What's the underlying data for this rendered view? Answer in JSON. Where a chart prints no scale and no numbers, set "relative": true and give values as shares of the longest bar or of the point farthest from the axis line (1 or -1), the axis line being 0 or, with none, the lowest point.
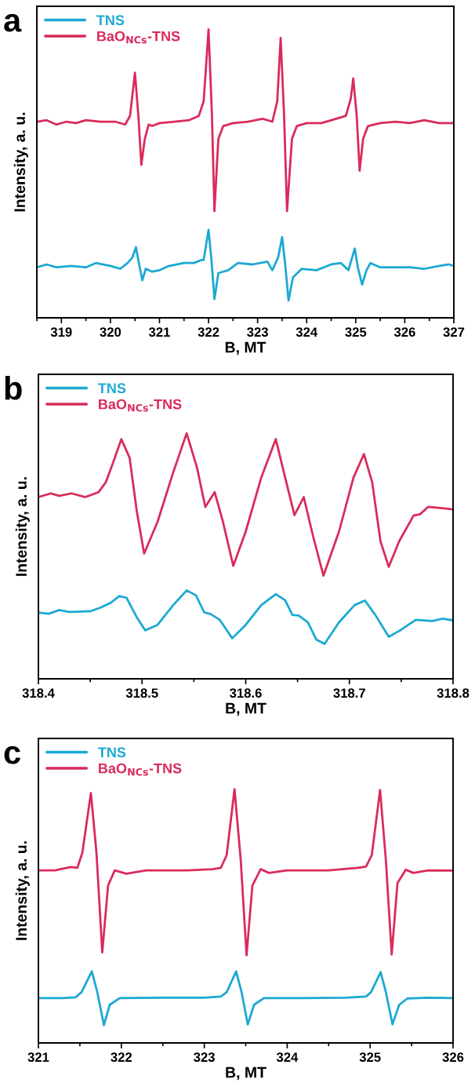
{
  "chart_data": [
    {
      "type": "line",
      "title": "a",
      "xlabel": "B, MT",
      "ylabel": "Intensity, a. u.",
      "relative": true,
      "xlim": [
        318.5,
        327
      ],
      "xticks": [
        319,
        320,
        321,
        322,
        323,
        324,
        325,
        326,
        327
      ],
      "legend": "top left",
      "grid": false,
      "series": [
        {
          "name": "TNS",
          "color": "#1ca9d3",
          "x": [
            318.5,
            318.7,
            318.9,
            319.2,
            319.5,
            319.7,
            320.0,
            320.2,
            320.35,
            320.45,
            320.52,
            320.58,
            320.65,
            320.72,
            320.85,
            321.0,
            321.2,
            321.5,
            321.7,
            321.85,
            321.9,
            322.0,
            322.06,
            322.12,
            322.2,
            322.4,
            322.6,
            322.9,
            323.2,
            323.3,
            323.42,
            323.5,
            323.56,
            323.63,
            323.72,
            323.9,
            324.2,
            324.5,
            324.7,
            324.85,
            324.98,
            325.05,
            325.13,
            325.22,
            325.3,
            325.5,
            325.8,
            326.1,
            326.4,
            326.7,
            326.9,
            327.0
          ],
          "values": [
            0.175,
            0.185,
            0.175,
            0.18,
            0.175,
            0.19,
            0.18,
            0.17,
            0.19,
            0.21,
            0.245,
            0.19,
            0.13,
            0.17,
            0.16,
            0.165,
            0.18,
            0.19,
            0.19,
            0.2,
            0.2,
            0.305,
            0.2,
            0.065,
            0.155,
            0.165,
            0.19,
            0.185,
            0.195,
            0.165,
            0.21,
            0.28,
            0.19,
            0.06,
            0.14,
            0.17,
            0.165,
            0.185,
            0.19,
            0.165,
            0.24,
            0.17,
            0.115,
            0.165,
            0.19,
            0.175,
            0.175,
            0.175,
            0.17,
            0.18,
            0.185,
            0.18
          ]
        },
        {
          "name": "BaO$_{NCs}$-TNS",
          "color": "#d92b5b",
          "x": [
            318.5,
            318.7,
            318.9,
            319.1,
            319.3,
            319.5,
            319.8,
            320.1,
            320.3,
            320.4,
            320.5,
            320.57,
            320.63,
            320.7,
            320.78,
            320.85,
            321.0,
            321.3,
            321.6,
            321.8,
            321.9,
            322.0,
            322.07,
            322.12,
            322.2,
            322.3,
            322.5,
            322.8,
            323.1,
            323.3,
            323.4,
            323.47,
            323.54,
            323.6,
            323.7,
            323.8,
            324.0,
            324.3,
            324.6,
            324.8,
            324.9,
            324.95,
            325.02,
            325.08,
            325.15,
            325.25,
            325.5,
            325.8,
            326.1,
            326.4,
            326.7,
            327.0
          ],
          "values": [
            0.68,
            0.685,
            0.67,
            0.68,
            0.675,
            0.685,
            0.68,
            0.68,
            0.67,
            0.7,
            0.85,
            0.7,
            0.53,
            0.62,
            0.67,
            0.665,
            0.675,
            0.68,
            0.685,
            0.7,
            0.75,
            1.0,
            0.7,
            0.37,
            0.62,
            0.665,
            0.675,
            0.68,
            0.69,
            0.68,
            0.75,
            0.97,
            0.7,
            0.37,
            0.62,
            0.665,
            0.675,
            0.675,
            0.69,
            0.7,
            0.76,
            0.83,
            0.7,
            0.51,
            0.62,
            0.665,
            0.675,
            0.68,
            0.675,
            0.685,
            0.675,
            0.675
          ]
        }
      ]
    },
    {
      "type": "line",
      "title": "b",
      "xlabel": "B, MT",
      "ylabel": "Intensity, a. u.",
      "relative": true,
      "xlim": [
        318.4,
        318.8
      ],
      "xticks": [
        318.4,
        318.5,
        318.6,
        318.7,
        318.8
      ],
      "legend": "top left",
      "grid": false,
      "series": [
        {
          "name": "TNS",
          "color": "#1ca9d3",
          "x": [
            318.4,
            318.41,
            318.42,
            318.43,
            318.45,
            318.46,
            318.47,
            318.478,
            318.485,
            318.495,
            318.503,
            318.515,
            318.53,
            318.543,
            318.552,
            318.56,
            318.566,
            318.575,
            318.587,
            318.6,
            318.615,
            318.629,
            318.638,
            318.645,
            318.651,
            318.66,
            318.668,
            318.676,
            318.69,
            318.705,
            318.715,
            318.725,
            318.738,
            318.75,
            318.764,
            318.78,
            318.79,
            318.8
          ],
          "values": [
            0.27,
            0.265,
            0.28,
            0.272,
            0.275,
            0.29,
            0.31,
            0.337,
            0.33,
            0.25,
            0.197,
            0.22,
            0.3,
            0.36,
            0.34,
            0.27,
            0.264,
            0.24,
            0.165,
            0.22,
            0.3,
            0.345,
            0.32,
            0.26,
            0.258,
            0.23,
            0.16,
            0.142,
            0.23,
            0.3,
            0.319,
            0.26,
            0.171,
            0.2,
            0.24,
            0.235,
            0.245,
            0.238
          ]
        },
        {
          "name": "BaO$_{NCs}$-TNS",
          "color": "#d92b5b",
          "x": [
            318.4,
            318.412,
            318.42,
            318.432,
            318.445,
            318.458,
            318.465,
            318.472,
            318.48,
            318.488,
            318.495,
            318.502,
            318.515,
            318.53,
            318.543,
            318.553,
            318.561,
            318.57,
            318.578,
            318.588,
            318.6,
            318.615,
            318.629,
            318.638,
            318.647,
            318.656,
            318.665,
            318.675,
            318.69,
            318.704,
            318.714,
            318.722,
            318.73,
            318.738,
            318.748,
            318.762,
            318.768,
            318.776,
            318.79,
            318.8
          ],
          "values": [
            0.74,
            0.755,
            0.745,
            0.755,
            0.74,
            0.76,
            0.8,
            0.88,
            0.976,
            0.9,
            0.68,
            0.51,
            0.64,
            0.84,
            1.0,
            0.86,
            0.7,
            0.76,
            0.64,
            0.46,
            0.6,
            0.82,
            0.976,
            0.82,
            0.667,
            0.74,
            0.58,
            0.42,
            0.6,
            0.82,
            0.915,
            0.8,
            0.56,
            0.456,
            0.56,
            0.665,
            0.67,
            0.7,
            0.695,
            0.69
          ]
        }
      ]
    },
    {
      "type": "line",
      "title": "c",
      "xlabel": "B, MT",
      "ylabel": "Intensity, a. u.",
      "relative": true,
      "xlim": [
        321,
        326
      ],
      "xticks": [
        321,
        322,
        323,
        324,
        325,
        326
      ],
      "legend": "top left",
      "grid": false,
      "series": [
        {
          "name": "TNS",
          "color": "#1ca9d3",
          "x": [
            321.0,
            321.3,
            321.45,
            321.52,
            321.644,
            321.71,
            321.79,
            321.86,
            321.98,
            322.5,
            323.0,
            323.2,
            323.27,
            323.384,
            323.45,
            323.525,
            323.6,
            323.72,
            324.2,
            324.7,
            324.95,
            325.01,
            325.127,
            325.19,
            325.27,
            325.35,
            325.45,
            325.7,
            326.0
          ],
          "values": [
            0.177,
            0.177,
            0.18,
            0.2,
            0.282,
            0.2,
            0.07,
            0.15,
            0.177,
            0.178,
            0.178,
            0.183,
            0.2,
            0.282,
            0.2,
            0.073,
            0.15,
            0.177,
            0.177,
            0.178,
            0.183,
            0.2,
            0.279,
            0.2,
            0.073,
            0.15,
            0.175,
            0.178,
            0.177
          ]
        },
        {
          "name": "BaO$_{NCs}$-TNS",
          "color": "#d92b5b",
          "x": [
            321.0,
            321.2,
            321.39,
            321.47,
            321.53,
            321.633,
            321.7,
            321.77,
            321.84,
            321.92,
            322.06,
            322.3,
            322.8,
            323.1,
            323.2,
            323.27,
            323.365,
            323.44,
            323.51,
            323.58,
            323.68,
            323.78,
            324.0,
            324.5,
            324.85,
            324.95,
            325.02,
            325.12,
            325.19,
            325.26,
            325.33,
            325.43,
            325.52,
            325.7,
            326.0
          ],
          "values": [
            0.68,
            0.68,
            0.693,
            0.69,
            0.75,
            0.985,
            0.75,
            0.357,
            0.62,
            0.68,
            0.667,
            0.68,
            0.68,
            0.685,
            0.69,
            0.74,
            1.0,
            0.72,
            0.345,
            0.62,
            0.685,
            0.67,
            0.68,
            0.68,
            0.69,
            0.695,
            0.74,
            0.997,
            0.72,
            0.348,
            0.63,
            0.683,
            0.67,
            0.68,
            0.679
          ]
        }
      ]
    }
  ]
}
